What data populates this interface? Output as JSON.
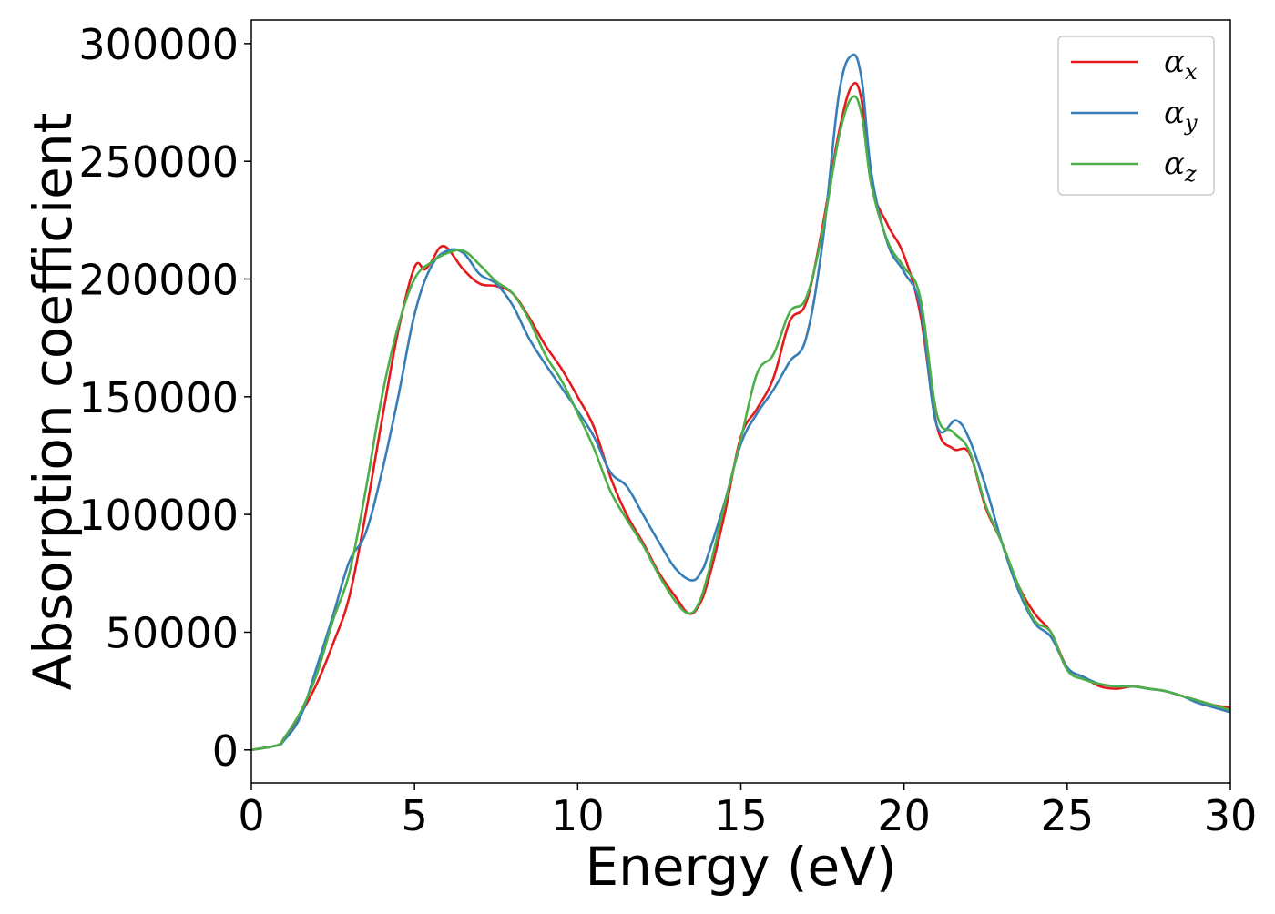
{
  "chart_data": {
    "type": "line",
    "title": "",
    "xlabel": "Energy (eV)",
    "ylabel": "Absorption coefficient",
    "xlim": [
      0,
      30
    ],
    "ylim": [
      -14000,
      310000
    ],
    "xticks": [
      0,
      5,
      10,
      15,
      20,
      25,
      30
    ],
    "yticks": [
      0,
      50000,
      100000,
      150000,
      200000,
      250000,
      300000
    ],
    "grid": false,
    "legend": "upper right",
    "series": [
      {
        "name": "α_x",
        "label_main": "α",
        "label_sub": "x",
        "color": "#e41a1c",
        "x": [
          0,
          0.8,
          1.0,
          1.5,
          2.0,
          2.5,
          3.0,
          3.5,
          4.0,
          4.5,
          5.0,
          5.3,
          5.5,
          5.9,
          6.5,
          7.0,
          7.5,
          8.0,
          8.5,
          9.0,
          9.5,
          10.0,
          10.5,
          11.0,
          11.5,
          12.0,
          12.5,
          13.0,
          13.4,
          13.7,
          14.0,
          14.5,
          15.0,
          15.5,
          16.0,
          16.5,
          17.0,
          17.5,
          18.0,
          18.4,
          18.7,
          19.0,
          19.5,
          20.0,
          20.5,
          21.0,
          21.5,
          22.0,
          22.5,
          23.0,
          23.5,
          24.0,
          24.5,
          25.0,
          25.5,
          26.0,
          26.5,
          27.0,
          27.5,
          28.0,
          28.5,
          29.0,
          29.5,
          30.0
        ],
        "y": [
          0,
          2000,
          5000,
          15000,
          28000,
          45000,
          65000,
          100000,
          140000,
          178000,
          205000,
          204000,
          207000,
          214000,
          204000,
          198000,
          197000,
          194000,
          184000,
          172000,
          162000,
          150000,
          137000,
          116000,
          100000,
          88000,
          75000,
          65000,
          58000,
          61000,
          72000,
          100000,
          133000,
          145000,
          158000,
          182000,
          190000,
          222000,
          262000,
          282000,
          276000,
          240000,
          223000,
          210000,
          185000,
          138000,
          128000,
          126000,
          103000,
          88000,
          70000,
          58000,
          50000,
          35000,
          31000,
          27000,
          26000,
          27000,
          26000,
          25000,
          23000,
          21000,
          19000,
          18000
        ]
      },
      {
        "name": "α_y",
        "label_main": "α",
        "label_sub": "y",
        "color": "#377eb8",
        "x": [
          0,
          0.8,
          1.0,
          1.5,
          2.0,
          2.5,
          3.0,
          3.5,
          4.0,
          4.5,
          5.0,
          5.5,
          6.0,
          6.5,
          7.0,
          7.5,
          8.0,
          8.5,
          9.0,
          9.5,
          10.0,
          10.5,
          11.0,
          11.5,
          12.0,
          12.5,
          13.0,
          13.5,
          13.8,
          14.0,
          14.5,
          15.0,
          15.5,
          16.0,
          16.5,
          17.0,
          17.5,
          18.0,
          18.4,
          18.7,
          19.0,
          19.5,
          20.0,
          20.5,
          21.0,
          21.6,
          22.0,
          22.5,
          23.0,
          23.5,
          24.0,
          24.5,
          25.0,
          25.5,
          26.0,
          26.5,
          27.0,
          27.5,
          28.0,
          28.5,
          29.0,
          29.5,
          30.0
        ],
        "y": [
          0,
          2000,
          4000,
          14000,
          35000,
          57000,
          80000,
          92000,
          118000,
          150000,
          185000,
          205000,
          212000,
          211000,
          202000,
          198000,
          189000,
          175000,
          164000,
          154000,
          144000,
          133000,
          118000,
          112000,
          100000,
          88000,
          77000,
          72000,
          76000,
          83000,
          105000,
          130000,
          143000,
          153000,
          165000,
          175000,
          215000,
          278000,
          295000,
          285000,
          245000,
          215000,
          203000,
          188000,
          138000,
          140000,
          132000,
          112000,
          88000,
          68000,
          54000,
          48000,
          35000,
          31000,
          28000,
          27000,
          27000,
          26000,
          25000,
          23000,
          20000,
          18000,
          16000
        ]
      },
      {
        "name": "α_z",
        "label_main": "α",
        "label_sub": "z",
        "color": "#4daf4a",
        "x": [
          0,
          0.8,
          1.0,
          1.5,
          2.0,
          2.5,
          3.0,
          3.5,
          4.0,
          4.5,
          5.0,
          5.5,
          6.0,
          6.5,
          7.0,
          7.5,
          8.0,
          8.5,
          9.0,
          9.5,
          10.0,
          10.5,
          11.0,
          11.5,
          12.0,
          12.5,
          13.0,
          13.4,
          13.7,
          14.0,
          14.5,
          15.0,
          15.5,
          16.0,
          16.5,
          17.0,
          17.5,
          18.0,
          18.4,
          18.7,
          19.0,
          19.5,
          20.0,
          20.5,
          21.0,
          21.5,
          22.0,
          22.5,
          23.0,
          23.5,
          24.0,
          24.5,
          25.0,
          25.5,
          26.0,
          26.5,
          27.0,
          27.5,
          28.0,
          28.5,
          29.0,
          29.5,
          30.0
        ],
        "y": [
          0,
          2000,
          5000,
          16000,
          32000,
          55000,
          75000,
          110000,
          150000,
          180000,
          200000,
          207000,
          211000,
          212000,
          206000,
          199000,
          194000,
          183000,
          168000,
          157000,
          143000,
          128000,
          110000,
          98000,
          87000,
          74000,
          63000,
          58000,
          62000,
          75000,
          104000,
          132000,
          160000,
          168000,
          186000,
          192000,
          220000,
          260000,
          277000,
          270000,
          240000,
          216000,
          205000,
          192000,
          143000,
          135000,
          127000,
          104000,
          88000,
          70000,
          55000,
          50000,
          34000,
          30000,
          28000,
          27000,
          27000,
          26000,
          25000,
          23000,
          21000,
          19000,
          17000
        ]
      }
    ]
  }
}
